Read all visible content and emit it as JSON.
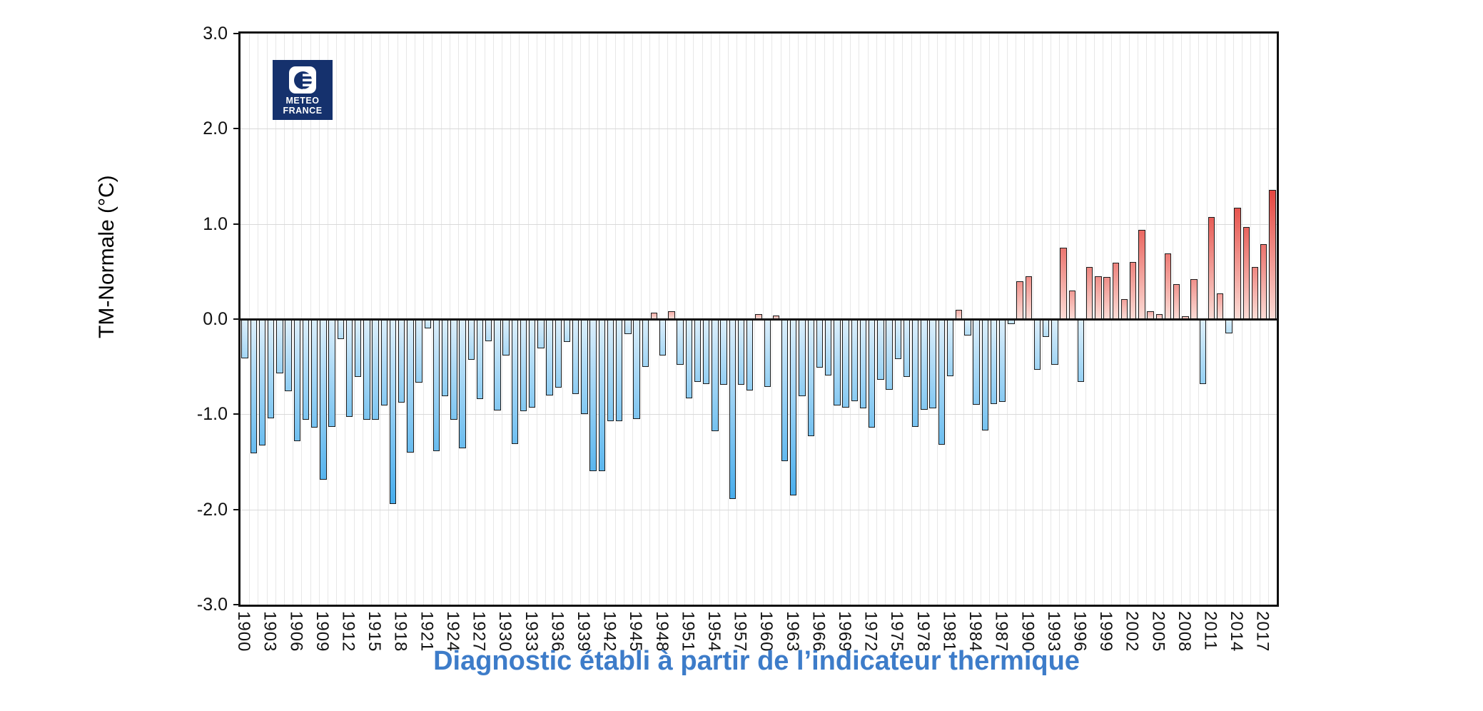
{
  "caption": {
    "text": "Diagnostic établi à partir de l’indicateur thermique",
    "color": "#3d7cc9"
  },
  "logo": {
    "line1": "METEO",
    "line2": "FRANCE",
    "bg_color": "#15316d"
  },
  "y_axis": {
    "label": "TM-Normale (°C)",
    "ticks": [
      "3.0",
      "2.0",
      "1.0",
      "0.0",
      "-1.0",
      "-2.0",
      "-3.0"
    ],
    "tick_values": [
      3,
      2,
      1,
      0,
      -1,
      -2,
      -3
    ]
  },
  "x_axis": {
    "tick_start": 1900,
    "tick_step": 3,
    "tick_last": 2017
  },
  "chart_data": {
    "type": "bar",
    "title": "",
    "xlabel": "",
    "ylabel": "TM-Normale (°C)",
    "ylim": [
      -3.0,
      3.0
    ],
    "grid": true,
    "legend": "none",
    "start_year": 1900,
    "end_year": 2018,
    "values": [
      -0.41,
      -1.41,
      -1.33,
      -1.04,
      -0.57,
      -0.76,
      -1.28,
      -1.06,
      -1.14,
      -1.69,
      -1.13,
      -0.21,
      -1.03,
      -0.61,
      -1.06,
      -1.06,
      -0.91,
      -1.94,
      -0.88,
      -1.4,
      -0.67,
      -0.1,
      -1.39,
      -0.81,
      -1.06,
      -1.36,
      -0.43,
      -0.84,
      -0.23,
      -0.96,
      -0.38,
      -1.31,
      -0.97,
      -0.93,
      -0.31,
      -0.8,
      -0.72,
      -0.24,
      -0.79,
      -1.0,
      -1.6,
      -1.6,
      -1.07,
      -1.07,
      -0.16,
      -1.05,
      -0.5,
      0.07,
      -0.38,
      0.08,
      -0.48,
      -0.83,
      -0.66,
      -0.68,
      -1.18,
      -0.69,
      -1.89,
      -0.69,
      -0.75,
      0.05,
      -0.71,
      0.04,
      -1.49,
      -1.85,
      -0.81,
      -1.23,
      -0.51,
      -0.59,
      -0.91,
      -0.93,
      -0.86,
      -0.94,
      -1.14,
      -0.64,
      -0.74,
      -0.42,
      -0.61,
      -1.13,
      -0.95,
      -0.94,
      -1.32,
      -0.6,
      0.1,
      -0.17,
      -0.9,
      -1.17,
      -0.89,
      -0.87,
      -0.05,
      0.4,
      0.45,
      -0.53,
      -0.19,
      -0.48,
      0.75,
      0.3,
      -0.66,
      0.55,
      0.45,
      0.44,
      0.59,
      0.21,
      0.6,
      0.94,
      0.08,
      0.05,
      0.69,
      0.37,
      0.03,
      0.42,
      -0.68,
      1.07,
      0.27,
      -0.15,
      1.17,
      0.97,
      0.55,
      0.79,
      1.36
    ],
    "colors": {
      "negative_light": "#ddeffb",
      "negative_deep": "#45acec",
      "positive_light": "#fbdcd6",
      "positive_deep": "#e4423c",
      "bar_border": "#1c1c1c",
      "zero_line": "#111111",
      "grid_line": "#e7e7e7"
    }
  }
}
